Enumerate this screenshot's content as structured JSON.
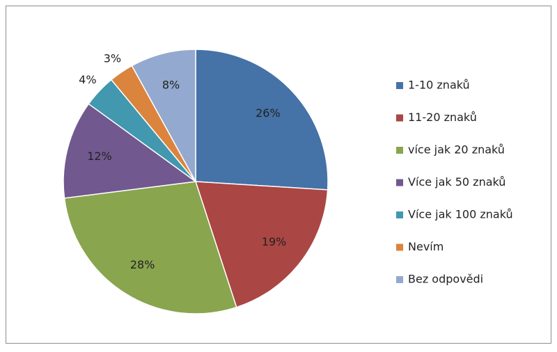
{
  "chart_data": {
    "type": "pie",
    "categories": [
      "1-10 znaků",
      "11-20 znaků",
      "více jak 20 znaků",
      "Více jak 50 znaků",
      "Více jak 100 znaků",
      "Nevím",
      "Bez odpovědi"
    ],
    "values": [
      26,
      19,
      28,
      12,
      4,
      3,
      8
    ],
    "value_labels": [
      "26%",
      "19%",
      "28%",
      "12%",
      "4%",
      "3%",
      "8%"
    ],
    "colors": [
      "#4572a7",
      "#aa4643",
      "#89a54e",
      "#71588f",
      "#4198af",
      "#db843d",
      "#93a9cf"
    ],
    "legend": "right"
  }
}
